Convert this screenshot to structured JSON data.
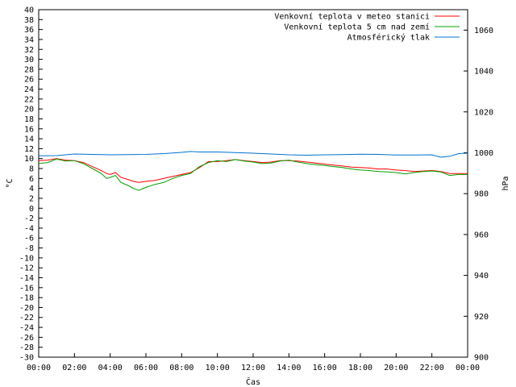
{
  "chart_data": {
    "type": "line",
    "xlabel": "Čas",
    "ylabel": "°C",
    "y2label": "hPa",
    "xlim": [
      0,
      24
    ],
    "ylim": [
      -30,
      40
    ],
    "y2lim": [
      900,
      1070
    ],
    "x_ticks": [
      "00:00",
      "02:00",
      "04:00",
      "06:00",
      "08:00",
      "10:00",
      "12:00",
      "14:00",
      "16:00",
      "18:00",
      "20:00",
      "22:00",
      "00:00"
    ],
    "y_ticks": [
      -30,
      -28,
      -26,
      -24,
      -22,
      -20,
      -18,
      -16,
      -14,
      -12,
      -10,
      -8,
      -6,
      -4,
      -2,
      0,
      2,
      4,
      6,
      8,
      10,
      12,
      14,
      16,
      18,
      20,
      22,
      24,
      26,
      28,
      30,
      32,
      34,
      36,
      38,
      40
    ],
    "y2_ticks": [
      900,
      920,
      940,
      960,
      980,
      1000,
      1020,
      1040,
      1060
    ],
    "legend_position": "top-right",
    "grid": false,
    "series": [
      {
        "name": "Venkovní teplota v meteo stanici",
        "color": "#ff0000",
        "axis": "left",
        "x": [
          0,
          0.5,
          1,
          1.5,
          2,
          2.5,
          3,
          3.5,
          3.8,
          4,
          4.3,
          4.6,
          5,
          5.3,
          5.6,
          6,
          6.5,
          7,
          7.5,
          8,
          8.5,
          9,
          9.5,
          10,
          10.5,
          11,
          11.5,
          12,
          12.5,
          13,
          13.5,
          14,
          14.5,
          15,
          15.5,
          16,
          16.5,
          17,
          17.5,
          18,
          18.5,
          19,
          19.5,
          20,
          20.5,
          21,
          21.5,
          22,
          22.5,
          23,
          23.5,
          24
        ],
        "values": [
          9.6,
          9.7,
          10.0,
          9.7,
          9.6,
          9.2,
          8.4,
          7.6,
          7.0,
          6.8,
          7.2,
          6.2,
          5.8,
          5.4,
          5.2,
          5.4,
          5.6,
          6.0,
          6.4,
          6.8,
          7.2,
          8.2,
          9.4,
          9.4,
          9.6,
          9.8,
          9.6,
          9.4,
          9.2,
          9.3,
          9.6,
          9.6,
          9.5,
          9.3,
          9.1,
          8.9,
          8.7,
          8.5,
          8.3,
          8.2,
          8.1,
          7.9,
          7.9,
          7.7,
          7.6,
          7.4,
          7.5,
          7.6,
          7.4,
          7.0,
          7.0,
          7.0
        ]
      },
      {
        "name": "Venkovní teplota 5 cm nad zemí",
        "color": "#00a000",
        "axis": "left",
        "x": [
          0,
          0.5,
          1,
          1.5,
          2,
          2.5,
          3,
          3.5,
          3.8,
          4,
          4.3,
          4.6,
          5,
          5.3,
          5.6,
          6,
          6.5,
          7,
          7.5,
          8,
          8.5,
          9,
          9.5,
          10,
          10.5,
          11,
          11.5,
          12,
          12.5,
          13,
          13.5,
          14,
          14.5,
          15,
          15.5,
          16,
          16.5,
          17,
          17.5,
          18,
          18.5,
          19,
          19.5,
          20,
          20.5,
          21,
          21.5,
          22,
          22.5,
          23,
          23.5,
          24
        ],
        "values": [
          9.0,
          9.2,
          9.9,
          9.5,
          9.6,
          9.0,
          8.0,
          7.0,
          6.0,
          6.2,
          6.6,
          5.2,
          4.6,
          4.0,
          3.6,
          4.2,
          4.8,
          5.2,
          6.0,
          6.6,
          7.0,
          8.4,
          9.2,
          9.6,
          9.4,
          9.8,
          9.5,
          9.3,
          9.0,
          9.1,
          9.5,
          9.7,
          9.3,
          9.0,
          8.8,
          8.6,
          8.4,
          8.2,
          7.9,
          7.7,
          7.6,
          7.4,
          7.3,
          7.2,
          6.9,
          7.2,
          7.4,
          7.5,
          7.3,
          6.6,
          6.8,
          6.8
        ]
      },
      {
        "name": "Atmosférický tlak",
        "color": "#0070d0",
        "axis": "right",
        "x": [
          0,
          1,
          2,
          3,
          4,
          5,
          6,
          7,
          8,
          8.5,
          9,
          10,
          11,
          12,
          13,
          14,
          15,
          16,
          17,
          18,
          19,
          20,
          21,
          22,
          22.5,
          23,
          23.5,
          24
        ],
        "values": [
          998.5,
          998.6,
          999.4,
          999.2,
          999.0,
          999.1,
          999.2,
          999.6,
          1000.2,
          1000.6,
          1000.4,
          1000.4,
          1000.1,
          999.8,
          999.4,
          999.0,
          998.8,
          999.0,
          999.1,
          999.3,
          999.2,
          998.9,
          998.9,
          999.0,
          997.8,
          998.3,
          999.6,
          999.8
        ]
      }
    ]
  }
}
